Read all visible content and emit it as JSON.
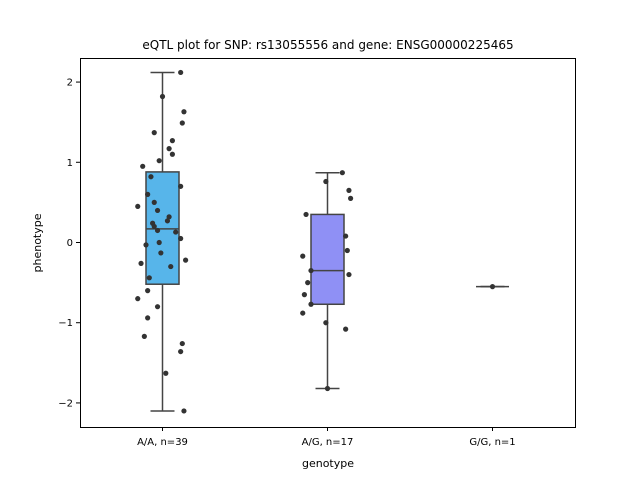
{
  "chart_data": {
    "type": "box",
    "title": "eQTL plot for SNP: rs13055556 and gene: ENSG00000225465",
    "xlabel": "genotype",
    "ylabel": "phenotype",
    "ylim": [
      -2.3,
      2.3
    ],
    "yticks": [
      -2,
      -1,
      0,
      1,
      2
    ],
    "ytick_labels": [
      "−2",
      "−1",
      "0",
      "1",
      "2"
    ],
    "grid": false,
    "categories": [
      "A/A, n=39",
      "A/G, n=17",
      "G/G, n=1"
    ],
    "boxes": [
      {
        "category": "A/A, n=39",
        "color": "#57b5ea",
        "q1": -0.52,
        "median": 0.17,
        "q3": 0.88,
        "whisker_low": -2.1,
        "whisker_high": 2.12
      },
      {
        "category": "A/G, n=17",
        "color": "#8f90f5",
        "q1": -0.77,
        "median": -0.35,
        "q3": 0.35,
        "whisker_low": -1.82,
        "whisker_high": 0.87
      },
      {
        "category": "G/G, n=1",
        "color": "#d69cf0",
        "q1": -0.55,
        "median": -0.55,
        "q3": -0.55,
        "whisker_low": -0.55,
        "whisker_high": -0.55
      }
    ],
    "points": [
      {
        "category": "A/A, n=39",
        "jitter": [
          0.11,
          0.0,
          0.13,
          0.12,
          -0.05,
          0.04,
          0.06,
          -0.02,
          0.06,
          -0.12,
          -0.07,
          -0.09,
          0.11,
          -0.05,
          -0.03,
          0.04,
          0.03,
          -0.06,
          -0.05,
          -0.03,
          0.08,
          -0.15,
          -0.02,
          0.11,
          -0.1,
          -0.13,
          0.14,
          0.05,
          -0.01,
          -0.08,
          -0.15,
          -0.09,
          0.12,
          -0.03,
          -0.09,
          0.11,
          0.13,
          0.02,
          -0.11
        ],
        "values": [
          2.12,
          1.82,
          1.63,
          1.49,
          1.37,
          1.17,
          1.1,
          1.02,
          1.27,
          0.95,
          0.82,
          0.6,
          0.7,
          0.5,
          0.4,
          0.32,
          0.27,
          0.24,
          0.2,
          0.15,
          0.13,
          0.45,
          0.0,
          0.05,
          -0.03,
          -0.26,
          -0.22,
          -0.3,
          -0.13,
          -0.44,
          -0.7,
          -0.6,
          -1.26,
          -0.8,
          -0.94,
          -1.36,
          -2.1,
          -1.63,
          -1.17
        ]
      },
      {
        "category": "A/G, n=17",
        "jitter": [
          0.09,
          -0.01,
          0.13,
          0.14,
          -0.13,
          0.11,
          -0.15,
          0.12,
          -0.1,
          -0.12,
          -0.14,
          -0.1,
          0.13,
          -0.01,
          0.0,
          -0.15,
          0.11
        ],
        "values": [
          0.87,
          0.76,
          0.65,
          0.55,
          0.35,
          0.08,
          -0.17,
          -0.1,
          -0.35,
          -0.5,
          -0.65,
          -0.77,
          -0.4,
          -1.0,
          -1.82,
          -0.88,
          -1.08
        ]
      },
      {
        "category": "G/G, n=1",
        "jitter": [
          0.0
        ],
        "values": [
          -0.55
        ]
      }
    ]
  }
}
